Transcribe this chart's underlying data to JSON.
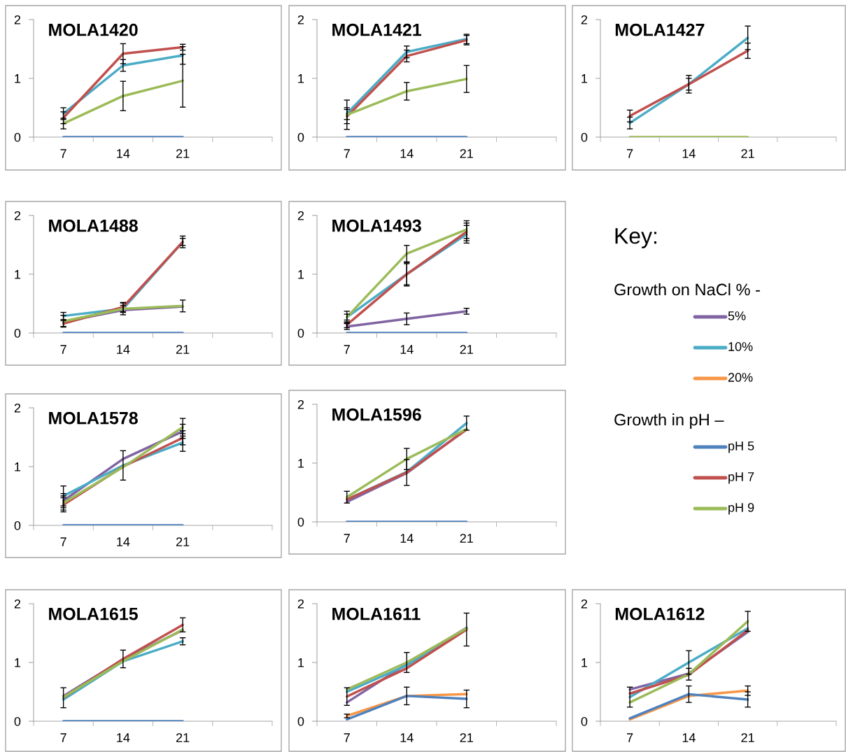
{
  "chart_data": [
    {
      "type": "line",
      "title": "MOLA1420",
      "categories": [
        "7",
        "14",
        "21",
        null
      ],
      "ylim": [
        0,
        2
      ],
      "yticks": [
        0,
        1,
        2
      ],
      "series": [
        {
          "color": "#4bacc6",
          "values": [
            0.4,
            1.22,
            1.39,
            null
          ],
          "errors": [
            0.1,
            0.1,
            0.15,
            null
          ]
        },
        {
          "color": "#4f81bd",
          "values": [
            0,
            0,
            0,
            null
          ]
        },
        {
          "color": "#c0504d",
          "values": [
            0.33,
            1.42,
            1.53,
            null
          ],
          "errors": [
            0.1,
            0.17,
            0.05,
            null
          ]
        },
        {
          "color": "#9bbb59",
          "values": [
            0.23,
            0.7,
            0.96,
            null
          ],
          "errors": [
            0.09,
            0.25,
            0.45,
            null
          ]
        }
      ]
    },
    {
      "type": "line",
      "title": "MOLA1421",
      "categories": [
        "7",
        "14",
        "21",
        null
      ],
      "ylim": [
        0,
        2
      ],
      "yticks": [
        0,
        1,
        2
      ],
      "series": [
        {
          "color": "#4bacc6",
          "values": [
            0.4,
            1.45,
            1.67,
            null
          ],
          "errors": [
            0.1,
            0.1,
            0.08,
            null
          ]
        },
        {
          "color": "#4f81bd",
          "values": [
            0,
            0,
            0,
            null
          ]
        },
        {
          "color": "#c0504d",
          "values": [
            0.35,
            1.38,
            1.65,
            null
          ],
          "errors": [
            0.12,
            0.1,
            0.08,
            null
          ]
        },
        {
          "color": "#9bbb59",
          "values": [
            0.38,
            0.78,
            0.99,
            null
          ],
          "errors": [
            0.25,
            0.15,
            0.23,
            null
          ]
        }
      ]
    },
    {
      "type": "line",
      "title": "MOLA1427",
      "categories": [
        "7",
        "14",
        "21",
        null
      ],
      "ylim": [
        0,
        2
      ],
      "yticks": [
        0,
        1,
        2
      ],
      "series": [
        {
          "color": "#4bacc6",
          "values": [
            0.24,
            0.9,
            1.69,
            null
          ],
          "errors": [
            0.1,
            0.1,
            0.2,
            null
          ]
        },
        {
          "color": "#c0504d",
          "values": [
            0.36,
            0.9,
            1.47,
            null
          ],
          "errors": [
            0.1,
            0.15,
            0.13,
            null
          ]
        },
        {
          "color": "#9bbb59",
          "values": [
            0,
            0,
            0,
            null
          ]
        }
      ]
    },
    {
      "type": "line",
      "title": "MOLA1488",
      "categories": [
        "7",
        "14",
        "21",
        null
      ],
      "ylim": [
        0,
        2
      ],
      "yticks": [
        0,
        1,
        2
      ],
      "series": [
        {
          "color": "#8064a2",
          "values": [
            0.19,
            0.39,
            0.45,
            null
          ]
        },
        {
          "color": "#4bacc6",
          "values": [
            0.29,
            0.41,
            1.55,
            null
          ],
          "errors": [
            0.06,
            0.06,
            0.06,
            null
          ]
        },
        {
          "color": "#4f81bd",
          "values": [
            0,
            0,
            0,
            null
          ]
        },
        {
          "color": "#c0504d",
          "values": [
            0.16,
            0.44,
            1.55,
            null
          ],
          "errors": [
            0.05,
            0.08,
            0.1,
            null
          ]
        },
        {
          "color": "#9bbb59",
          "values": [
            0.2,
            0.41,
            0.46,
            null
          ],
          "errors": [
            0.1,
            0.1,
            0.1,
            null
          ]
        }
      ]
    },
    {
      "type": "line",
      "title": "MOLA1493",
      "categories": [
        "7",
        "14",
        "21",
        null
      ],
      "ylim": [
        0,
        2
      ],
      "yticks": [
        0,
        1,
        2
      ],
      "series": [
        {
          "color": "#8064a2",
          "values": [
            0.11,
            0.24,
            0.37,
            null
          ],
          "errors": [
            0.05,
            0.1,
            0.05,
            null
          ]
        },
        {
          "color": "#4bacc6",
          "values": [
            0.27,
            1.0,
            1.68,
            null
          ],
          "errors": [
            0.05,
            0.2,
            0.15,
            null
          ]
        },
        {
          "color": "#4f81bd",
          "values": [
            0,
            0,
            0,
            null
          ]
        },
        {
          "color": "#c0504d",
          "values": [
            0.14,
            1.0,
            1.72,
            null
          ],
          "errors": [
            0.05,
            0.18,
            0.15,
            null
          ]
        },
        {
          "color": "#9bbb59",
          "values": [
            0.27,
            1.35,
            1.76,
            null
          ],
          "errors": [
            0.1,
            0.14,
            0.15,
            null
          ]
        }
      ]
    },
    {
      "type": "line",
      "title": "MOLA1578",
      "categories": [
        "7",
        "14",
        "21",
        null
      ],
      "ylim": [
        0,
        2
      ],
      "yticks": [
        0,
        1,
        2
      ],
      "series": [
        {
          "color": "#8064a2",
          "values": [
            0.42,
            1.13,
            1.6,
            null
          ],
          "errors": [
            0.12,
            null,
            0.12,
            null
          ]
        },
        {
          "color": "#4bacc6",
          "values": [
            0.5,
            1.02,
            1.41,
            null
          ],
          "errors": [
            0.17,
            0.25,
            0.15,
            null
          ]
        },
        {
          "color": "#4f81bd",
          "values": [
            0,
            0,
            0,
            null
          ]
        },
        {
          "color": "#c0504d",
          "values": [
            0.35,
            1.0,
            1.49,
            null
          ],
          "errors": [
            0.12,
            null,
            0.12,
            null
          ]
        },
        {
          "color": "#9bbb59",
          "values": [
            0.38,
            0.99,
            1.67,
            null
          ],
          "errors": [
            0.12,
            null,
            0.15,
            null
          ]
        }
      ]
    },
    {
      "type": "line",
      "title": "MOLA1596",
      "categories": [
        "7",
        "14",
        "21",
        null
      ],
      "ylim": [
        0,
        2
      ],
      "yticks": [
        0,
        1,
        2
      ],
      "series": [
        {
          "color": "#8064a2",
          "values": [
            0.34,
            0.83,
            1.58,
            null
          ]
        },
        {
          "color": "#4bacc6",
          "values": [
            0.38,
            0.85,
            1.68,
            null
          ],
          "errors": [
            null,
            null,
            0.12,
            null
          ]
        },
        {
          "color": "#4f81bd",
          "values": [
            0,
            0,
            0,
            null
          ]
        },
        {
          "color": "#c0504d",
          "values": [
            0.38,
            0.84,
            1.57,
            null
          ],
          "errors": [
            null,
            0.22,
            null,
            null
          ]
        },
        {
          "color": "#9bbb59",
          "values": [
            0.42,
            1.07,
            1.58,
            null
          ],
          "errors": [
            0.1,
            0.18,
            null,
            null
          ]
        }
      ]
    },
    {
      "type": "line",
      "title": "MOLA1615",
      "categories": [
        "7",
        "14",
        "21",
        null
      ],
      "ylim": [
        0,
        2
      ],
      "yticks": [
        0,
        1,
        2
      ],
      "series": [
        {
          "color": "#8064a2",
          "values": [
            0.43,
            1.05,
            1.55,
            null
          ]
        },
        {
          "color": "#4bacc6",
          "values": [
            0.37,
            1.02,
            1.36,
            null
          ],
          "errors": [
            null,
            null,
            0.06,
            null
          ]
        },
        {
          "color": "#4f81bd",
          "values": [
            0,
            0,
            0,
            null
          ]
        },
        {
          "color": "#c0504d",
          "values": [
            0.4,
            1.06,
            1.64,
            null
          ],
          "errors": [
            0.17,
            0.15,
            0.12,
            null
          ]
        },
        {
          "color": "#9bbb59",
          "values": [
            0.41,
            1.02,
            1.56,
            null
          ]
        }
      ]
    },
    {
      "type": "line",
      "title": "MOLA1611",
      "categories": [
        "7",
        "14",
        "21",
        null
      ],
      "ylim": [
        0,
        2
      ],
      "yticks": [
        0,
        1,
        2
      ],
      "series": [
        {
          "color": "#8064a2",
          "values": [
            0.32,
            0.97,
            1.59,
            null
          ]
        },
        {
          "color": "#4bacc6",
          "values": [
            0.5,
            0.95,
            1.58,
            null
          ]
        },
        {
          "color": "#f79646",
          "values": [
            0.09,
            0.43,
            0.46,
            null
          ],
          "errors": [
            0.03,
            null,
            null,
            null
          ]
        },
        {
          "color": "#4f81bd",
          "values": [
            0.03,
            0.43,
            0.38,
            null
          ],
          "errors": [
            null,
            0.15,
            0.15,
            null
          ]
        },
        {
          "color": "#c0504d",
          "values": [
            0.42,
            0.9,
            1.56,
            null
          ],
          "errors": [
            0.15,
            null,
            0.28,
            null
          ]
        },
        {
          "color": "#9bbb59",
          "values": [
            0.54,
            1.0,
            1.58,
            null
          ],
          "errors": [
            null,
            0.17,
            null,
            null
          ]
        }
      ]
    },
    {
      "type": "line",
      "title": "MOLA1612",
      "categories": [
        "7",
        "14",
        "21",
        null
      ],
      "ylim": [
        0,
        2
      ],
      "yticks": [
        0,
        1,
        2
      ],
      "series": [
        {
          "color": "#8064a2",
          "values": [
            0.54,
            0.81,
            1.52,
            null
          ]
        },
        {
          "color": "#4bacc6",
          "values": [
            0.41,
            1.0,
            1.58,
            null
          ],
          "errors": [
            0.17,
            0.2,
            null,
            null
          ]
        },
        {
          "color": "#f79646",
          "values": [
            0.03,
            0.43,
            0.52,
            null
          ],
          "errors": [
            null,
            null,
            0.08,
            null
          ]
        },
        {
          "color": "#4f81bd",
          "values": [
            0.05,
            0.46,
            0.37,
            null
          ],
          "errors": [
            null,
            0.14,
            0.13,
            null
          ]
        },
        {
          "color": "#c0504d",
          "values": [
            0.47,
            0.79,
            1.55,
            null
          ]
        },
        {
          "color": "#9bbb59",
          "values": [
            0.32,
            0.8,
            1.7,
            null
          ],
          "errors": [
            null,
            0.1,
            0.17,
            null
          ]
        }
      ]
    },
    {
      "type": "other",
      "title": "Key:",
      "legend": "right",
      "annotations": [
        "Growth on NaCl % -",
        "Growth in pH –"
      ],
      "series": [
        {
          "name": "5%",
          "color": "#8064a2"
        },
        {
          "name": "10%",
          "color": "#4bacc6"
        },
        {
          "name": "20%",
          "color": "#f79646"
        },
        {
          "name": "pH 5",
          "color": "#4f81bd"
        },
        {
          "name": "pH 7",
          "color": "#c0504d"
        },
        {
          "name": "pH 9",
          "color": "#9bbb59"
        }
      ]
    }
  ]
}
